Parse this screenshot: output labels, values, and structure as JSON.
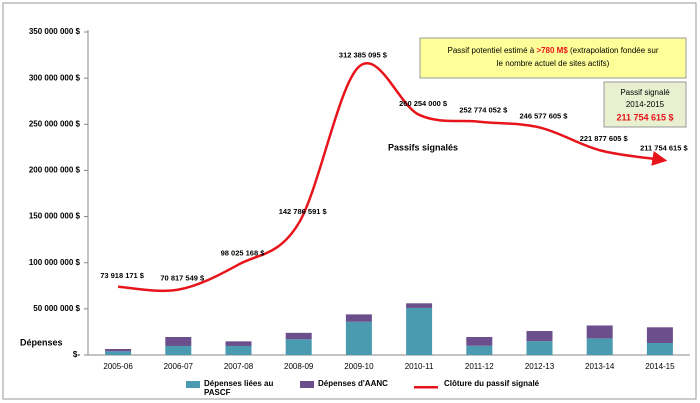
{
  "chart_data": {
    "type": "bar",
    "ylim": [
      0,
      350000000
    ],
    "yticks": [
      {
        "value": 0,
        "label": "$-"
      },
      {
        "value": 50000000,
        "label": "50 000 000 $"
      },
      {
        "value": 100000000,
        "label": "100 000 000 $"
      },
      {
        "value": 150000000,
        "label": "150 000 000 $"
      },
      {
        "value": 200000000,
        "label": "200 000 000 $"
      },
      {
        "value": 250000000,
        "label": "250 000 000 $"
      },
      {
        "value": 300000000,
        "label": "300 000 000 $"
      },
      {
        "value": 350000000,
        "label": "350 000 000 $"
      }
    ],
    "grid": false,
    "categories": [
      "2005-06",
      "2006-07",
      "2007-08",
      "2008-09",
      "2009-10",
      "2010-11",
      "2011-12",
      "2012-13",
      "2013-14",
      "2014-15"
    ],
    "series": [
      {
        "name": "Dépenses liées au PASCF",
        "type": "bar",
        "color": "#4a9bb0",
        "values": [
          4000000,
          9800000,
          9800000,
          17000000,
          36000000,
          51000000,
          10000000,
          15000000,
          18000000,
          13000000
        ]
      },
      {
        "name": "Dépenses d'AANC",
        "type": "bar",
        "color": "#6b4f8c",
        "values": [
          2500000,
          9700000,
          5000000,
          7000000,
          8000000,
          5000000,
          9500000,
          11000000,
          14000000,
          17000000
        ]
      },
      {
        "name": "Clôture du passif signalé",
        "type": "line",
        "color": "#e8141b",
        "values": [
          73918171,
          70817549,
          98025168,
          142786591,
          312385095,
          260254000,
          252774052,
          246577605,
          221877605,
          211754615
        ],
        "value_labels": [
          "73 918 171 $",
          "70 817 549 $",
          "98 025 168 $",
          "142 786 591 $",
          "312 385 095 $",
          "260 254 000 $",
          "252 774 052 $",
          "246 577 605 $",
          "221 877 605 $",
          "211 754 615 $"
        ]
      }
    ],
    "annotations": {
      "estimate": [
        "Passif potentiel estimé à ",
        ">780 M$",
        " (extrapolation fondée sur",
        "le nombre actuel de sites actifs)"
      ],
      "reported": [
        "Passif signalé",
        "2014-2015",
        "211 754 615 $"
      ],
      "line_label": "Passifs signalés",
      "y_label": "Dépenses"
    }
  }
}
